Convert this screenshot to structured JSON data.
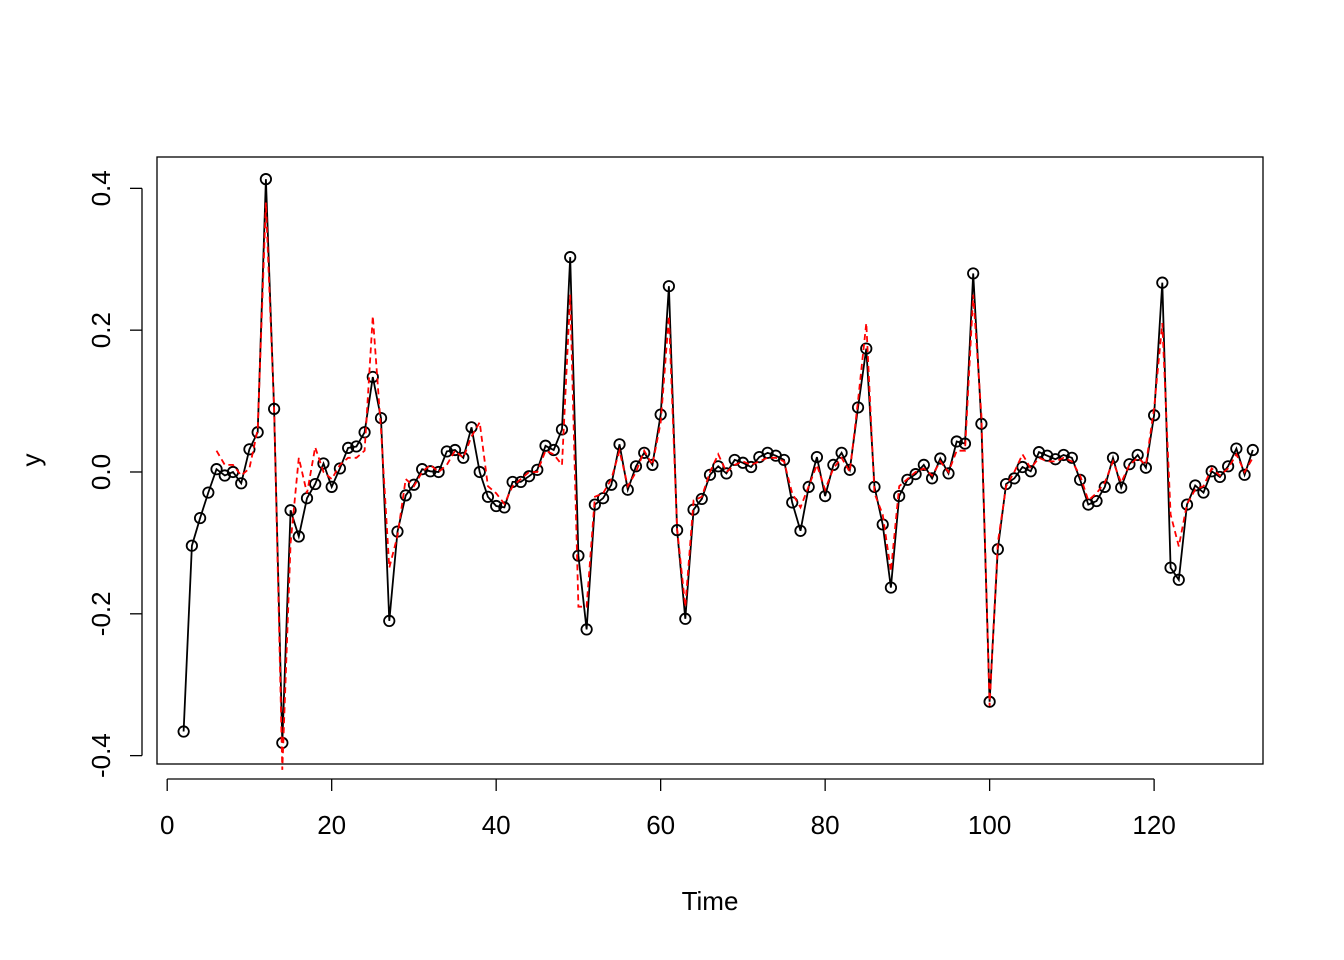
{
  "chart_data": {
    "type": "line",
    "xlabel": "Time",
    "ylabel": "y",
    "xlim": [
      -1.24,
      133.24
    ],
    "ylim": [
      -0.4118,
      0.4442
    ],
    "xticks": [
      0,
      20,
      40,
      60,
      80,
      100,
      120
    ],
    "yticks": [
      -0.4,
      -0.2,
      0.0,
      0.2,
      0.4
    ],
    "ytick_labels": [
      "-0.4",
      "-0.2",
      "0.0",
      "0.2",
      "0.4"
    ],
    "grid": false,
    "legend": "none",
    "series": [
      {
        "style": "solid-line-with-open-circles",
        "color": "#000000",
        "x": [
          2,
          3,
          4,
          5,
          6,
          7,
          8,
          9,
          10,
          11,
          12,
          13,
          14,
          15,
          16,
          17,
          18,
          19,
          20,
          21,
          22,
          23,
          24,
          25,
          26,
          27,
          28,
          29,
          30,
          31,
          32,
          33,
          34,
          35,
          36,
          37,
          38,
          39,
          40,
          41,
          42,
          43,
          44,
          45,
          46,
          47,
          48,
          49,
          50,
          51,
          52,
          53,
          54,
          55,
          56,
          57,
          58,
          59,
          60,
          61,
          62,
          63,
          64,
          65,
          66,
          67,
          68,
          69,
          70,
          71,
          72,
          73,
          74,
          75,
          76,
          77,
          78,
          79,
          80,
          81,
          82,
          83,
          84,
          85,
          86,
          87,
          88,
          89,
          90,
          91,
          92,
          93,
          94,
          95,
          96,
          97,
          98,
          99,
          100,
          101,
          102,
          103,
          104,
          105,
          106,
          107,
          108,
          109,
          110,
          111,
          112,
          113,
          114,
          115,
          116,
          117,
          118,
          119,
          120,
          121,
          122,
          123,
          124,
          125,
          126,
          127,
          128,
          129,
          130,
          131,
          132
        ],
        "y": [
          -0.366,
          -0.104,
          -0.065,
          -0.029,
          0.004,
          -0.005,
          0.0,
          -0.016,
          0.032,
          0.056,
          0.413,
          0.089,
          -0.382,
          -0.054,
          -0.091,
          -0.037,
          -0.017,
          0.012,
          -0.021,
          0.005,
          0.034,
          0.036,
          0.056,
          0.134,
          0.076,
          -0.21,
          -0.084,
          -0.033,
          -0.018,
          0.004,
          0.001,
          0.0,
          0.029,
          0.031,
          0.02,
          0.063,
          0.0,
          -0.035,
          -0.048,
          -0.05,
          -0.014,
          -0.014,
          -0.006,
          0.003,
          0.037,
          0.031,
          0.06,
          0.303,
          -0.118,
          -0.222,
          -0.046,
          -0.037,
          -0.018,
          0.039,
          -0.025,
          0.008,
          0.027,
          0.01,
          0.081,
          0.262,
          -0.082,
          -0.207,
          -0.053,
          -0.038,
          -0.004,
          0.008,
          -0.002,
          0.017,
          0.013,
          0.007,
          0.021,
          0.027,
          0.023,
          0.017,
          -0.043,
          -0.083,
          -0.021,
          0.021,
          -0.034,
          0.01,
          0.027,
          0.003,
          0.091,
          0.174,
          -0.021,
          -0.074,
          -0.163,
          -0.034,
          -0.011,
          -0.003,
          0.01,
          -0.009,
          0.019,
          -0.002,
          0.043,
          0.04,
          0.28,
          0.068,
          -0.324,
          -0.109,
          -0.017,
          -0.009,
          0.007,
          0.001,
          0.028,
          0.023,
          0.018,
          0.024,
          0.02,
          -0.011,
          -0.046,
          -0.041,
          -0.021,
          0.02,
          -0.022,
          0.011,
          0.024,
          0.006,
          0.08,
          0.267,
          -0.135,
          -0.152,
          -0.046,
          -0.019,
          -0.029,
          0.001,
          -0.007,
          0.008,
          0.033,
          -0.004,
          0.031
        ]
      },
      {
        "style": "red-dashed-line",
        "color": "#ff0000",
        "x": [
          6,
          7,
          8,
          9,
          10,
          11,
          12,
          13,
          14,
          15,
          16,
          17,
          18,
          19,
          20,
          21,
          22,
          23,
          24,
          25,
          26,
          27,
          28,
          29,
          30,
          31,
          32,
          33,
          34,
          35,
          36,
          37,
          38,
          39,
          40,
          41,
          42,
          43,
          44,
          45,
          46,
          47,
          48,
          49,
          50,
          51,
          52,
          53,
          54,
          55,
          56,
          57,
          58,
          59,
          60,
          61,
          62,
          63,
          64,
          65,
          66,
          67,
          68,
          69,
          70,
          71,
          72,
          73,
          74,
          75,
          76,
          77,
          78,
          79,
          80,
          81,
          82,
          83,
          84,
          85,
          86,
          87,
          88,
          89,
          90,
          91,
          92,
          93,
          94,
          95,
          96,
          97,
          98,
          99,
          100,
          101,
          102,
          103,
          104,
          105,
          106,
          107,
          108,
          109,
          110,
          111,
          112,
          113,
          114,
          115,
          116,
          117,
          118,
          119,
          120,
          121,
          122,
          123,
          124,
          125,
          126,
          127,
          128,
          129,
          130,
          131,
          132
        ],
        "y": [
          0.03,
          0.01,
          0.01,
          -0.005,
          0.005,
          0.06,
          0.38,
          0.09,
          -0.42,
          -0.1,
          0.02,
          -0.03,
          0.035,
          0.0,
          -0.01,
          0.01,
          0.02,
          0.02,
          0.03,
          0.22,
          0.06,
          -0.135,
          -0.09,
          -0.01,
          -0.02,
          0.0,
          0.01,
          0.0,
          0.01,
          0.03,
          0.02,
          0.05,
          0.07,
          -0.02,
          -0.03,
          -0.045,
          -0.02,
          -0.01,
          0.0,
          0.0,
          0.03,
          0.025,
          0.01,
          0.25,
          -0.19,
          -0.19,
          -0.035,
          -0.03,
          -0.01,
          0.03,
          -0.02,
          0.0,
          0.03,
          0.01,
          0.07,
          0.22,
          -0.08,
          -0.19,
          -0.04,
          -0.035,
          0.0,
          0.025,
          0.0,
          0.01,
          0.015,
          0.01,
          0.015,
          0.02,
          0.02,
          0.015,
          -0.03,
          -0.05,
          -0.02,
          0.01,
          -0.025,
          0.005,
          0.02,
          0.0,
          0.1,
          0.21,
          -0.03,
          -0.06,
          -0.14,
          -0.02,
          -0.01,
          0.0,
          0.005,
          -0.005,
          0.015,
          0.0,
          0.03,
          0.03,
          0.25,
          0.08,
          -0.33,
          -0.1,
          -0.02,
          0.0,
          0.025,
          0.005,
          0.02,
          0.015,
          0.015,
          0.02,
          0.015,
          -0.005,
          -0.04,
          -0.03,
          -0.015,
          0.015,
          -0.015,
          0.01,
          0.02,
          0.01,
          0.09,
          0.21,
          -0.06,
          -0.105,
          -0.045,
          -0.025,
          -0.02,
          0.005,
          -0.005,
          0.005,
          0.025,
          0.0,
          0.02
        ]
      }
    ]
  }
}
